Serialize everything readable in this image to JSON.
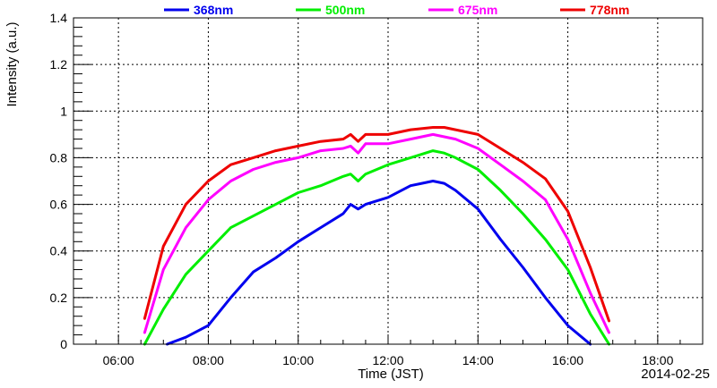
{
  "chart_data": {
    "type": "line",
    "xlabel": "Time (JST)",
    "ylabel": "Intensity (a.u.)",
    "date_label": "2014-02-25",
    "xlim": [
      "05:00",
      "19:00"
    ],
    "ylim": [
      0,
      1.4
    ],
    "x_ticks": [
      "06:00",
      "08:00",
      "10:00",
      "12:00",
      "14:00",
      "16:00",
      "18:00"
    ],
    "y_ticks": [
      "0",
      "0.2",
      "0.4",
      "0.6",
      "0.8",
      "1",
      "1.2",
      "1.4"
    ],
    "grid": true,
    "legend_position": "top",
    "series": [
      {
        "name": "368nm",
        "color": "#0000ee",
        "x": [
          "07:05",
          "07:30",
          "08:00",
          "08:30",
          "09:00",
          "09:30",
          "10:00",
          "10:30",
          "11:00",
          "11:10",
          "11:20",
          "11:30",
          "12:00",
          "12:30",
          "12:45",
          "13:00",
          "13:15",
          "13:30",
          "14:00",
          "14:30",
          "15:00",
          "15:30",
          "16:00",
          "16:30"
        ],
        "y": [
          0.0,
          0.03,
          0.08,
          0.2,
          0.31,
          0.37,
          0.44,
          0.5,
          0.56,
          0.6,
          0.58,
          0.6,
          0.63,
          0.68,
          0.69,
          0.7,
          0.69,
          0.66,
          0.58,
          0.45,
          0.33,
          0.2,
          0.08,
          0.0
        ]
      },
      {
        "name": "500nm",
        "color": "#00ee00",
        "x": [
          "06:35",
          "07:00",
          "07:30",
          "08:00",
          "08:30",
          "09:00",
          "09:30",
          "10:00",
          "10:30",
          "11:00",
          "11:10",
          "11:20",
          "11:30",
          "12:00",
          "12:30",
          "13:00",
          "13:15",
          "13:30",
          "14:00",
          "14:30",
          "15:00",
          "15:30",
          "16:00",
          "16:30",
          "16:55"
        ],
        "y": [
          0.0,
          0.15,
          0.3,
          0.4,
          0.5,
          0.55,
          0.6,
          0.65,
          0.68,
          0.72,
          0.73,
          0.7,
          0.73,
          0.77,
          0.8,
          0.83,
          0.82,
          0.8,
          0.75,
          0.66,
          0.56,
          0.45,
          0.32,
          0.13,
          0.0
        ]
      },
      {
        "name": "675nm",
        "color": "#ff00ff",
        "x": [
          "06:35",
          "07:00",
          "07:30",
          "08:00",
          "08:30",
          "09:00",
          "09:30",
          "10:00",
          "10:30",
          "11:00",
          "11:10",
          "11:20",
          "11:30",
          "12:00",
          "12:30",
          "13:00",
          "13:15",
          "13:30",
          "14:00",
          "14:30",
          "15:00",
          "15:30",
          "16:00",
          "16:30",
          "16:55"
        ],
        "y": [
          0.05,
          0.32,
          0.5,
          0.62,
          0.7,
          0.75,
          0.78,
          0.8,
          0.83,
          0.84,
          0.85,
          0.82,
          0.86,
          0.86,
          0.88,
          0.9,
          0.89,
          0.88,
          0.84,
          0.77,
          0.7,
          0.62,
          0.45,
          0.22,
          0.05
        ]
      },
      {
        "name": "778nm",
        "color": "#ee0000",
        "x": [
          "06:35",
          "07:00",
          "07:30",
          "08:00",
          "08:30",
          "09:00",
          "09:30",
          "10:00",
          "10:30",
          "11:00",
          "11:10",
          "11:20",
          "11:30",
          "12:00",
          "12:30",
          "13:00",
          "13:15",
          "13:30",
          "14:00",
          "14:30",
          "15:00",
          "15:30",
          "16:00",
          "16:30",
          "16:55"
        ],
        "y": [
          0.11,
          0.42,
          0.6,
          0.7,
          0.77,
          0.8,
          0.83,
          0.85,
          0.87,
          0.88,
          0.9,
          0.87,
          0.9,
          0.9,
          0.92,
          0.93,
          0.93,
          0.92,
          0.9,
          0.84,
          0.78,
          0.71,
          0.57,
          0.33,
          0.1
        ]
      }
    ]
  }
}
